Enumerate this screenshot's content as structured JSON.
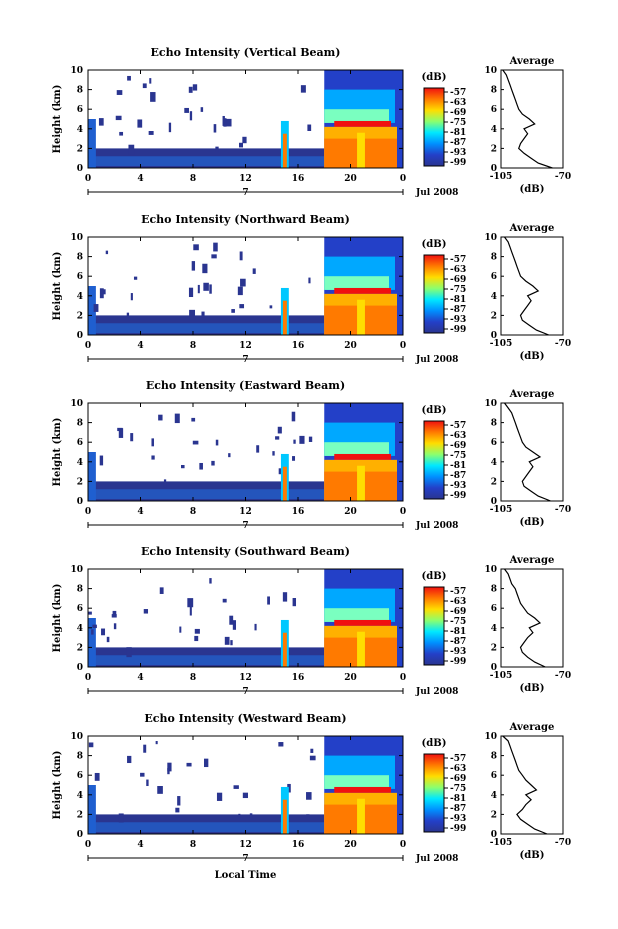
{
  "figure": {
    "xlabel": "Local Time",
    "date_label": "Jul 2008",
    "day_label": "7",
    "colorbar_unit": "(dB)",
    "colorbar_ticks": [
      "-57",
      "-63",
      "-69",
      "-75",
      "-81",
      "-87",
      "-93",
      "-99"
    ],
    "colorbar_stops": [
      "#f01010",
      "#ff7a00",
      "#ffdd00",
      "#8cff6e",
      "#00e8ff",
      "#0090ff",
      "#2340c8",
      "#2a3590"
    ],
    "profile_title": "Average",
    "profile_xlabel": "(dB)"
  },
  "chart_data": [
    {
      "type": "heatmap",
      "title": "Echo Intensity (Vertical Beam)",
      "ylabel": "Height (km)",
      "xticks": [
        "0",
        "4",
        "8",
        "12",
        "16",
        "20",
        "0"
      ],
      "yticks": [
        "0",
        "2",
        "4",
        "6",
        "8",
        "10"
      ],
      "ylim": [
        0,
        10
      ],
      "xlim": [
        0,
        24
      ],
      "colorbar_range": [
        -99,
        -57
      ],
      "profile": {
        "xticks": [
          "-105",
          "-70"
        ],
        "yticks": [
          "0",
          "2",
          "4",
          "6",
          "8",
          "10"
        ],
        "xlim": [
          -105,
          -70
        ],
        "height_km": [
          0,
          0.5,
          1,
          1.5,
          2,
          2.5,
          3,
          3.5,
          4,
          4.5,
          5,
          5.5,
          6,
          6.5,
          7,
          7.5,
          8,
          8.5,
          9,
          9.5,
          10
        ],
        "avg_db": [
          -76,
          -84,
          -88,
          -92,
          -95,
          -94,
          -92,
          -90,
          -92,
          -86,
          -89,
          -93,
          -95,
          -96,
          -97,
          -98,
          -99,
          -100,
          -101,
          -102,
          -104
        ]
      }
    },
    {
      "type": "heatmap",
      "title": "Echo Intensity (Northward Beam)",
      "ylabel": "Height (km)",
      "xticks": [
        "0",
        "4",
        "8",
        "12",
        "16",
        "20",
        "0"
      ],
      "yticks": [
        "0",
        "2",
        "4",
        "6",
        "8",
        "10"
      ],
      "ylim": [
        0,
        10
      ],
      "xlim": [
        0,
        24
      ],
      "colorbar_range": [
        -99,
        -57
      ],
      "profile": {
        "xticks": [
          "-105",
          "-70"
        ],
        "yticks": [
          "0",
          "2",
          "4",
          "6",
          "8",
          "10"
        ],
        "xlim": [
          -105,
          -70
        ],
        "height_km": [
          0,
          0.5,
          1,
          1.5,
          2,
          2.5,
          3,
          3.5,
          4,
          4.5,
          5,
          5.5,
          6,
          6.5,
          7,
          7.5,
          8,
          8.5,
          9,
          9.5,
          10
        ],
        "avg_db": [
          -78,
          -85,
          -89,
          -93,
          -94,
          -92,
          -90,
          -88,
          -90,
          -84,
          -87,
          -91,
          -94,
          -95,
          -96,
          -97,
          -98,
          -99,
          -100,
          -101,
          -103
        ]
      }
    },
    {
      "type": "heatmap",
      "title": "Echo Intensity (Eastward Beam)",
      "ylabel": "Height (km)",
      "xticks": [
        "0",
        "4",
        "8",
        "12",
        "16",
        "20",
        "0"
      ],
      "yticks": [
        "0",
        "2",
        "4",
        "6",
        "8",
        "10"
      ],
      "ylim": [
        0,
        10
      ],
      "xlim": [
        0,
        24
      ],
      "colorbar_range": [
        -99,
        -57
      ],
      "profile": {
        "xticks": [
          "-105",
          "-70"
        ],
        "yticks": [
          "0",
          "2",
          "4",
          "6",
          "8",
          "10"
        ],
        "xlim": [
          -105,
          -70
        ],
        "height_km": [
          0,
          0.5,
          1,
          1.5,
          2,
          2.5,
          3,
          3.5,
          4,
          4.5,
          5,
          5.5,
          6,
          6.5,
          7,
          7.5,
          8,
          8.5,
          9,
          9.5,
          10
        ],
        "avg_db": [
          -77,
          -84,
          -88,
          -92,
          -93,
          -91,
          -89,
          -87,
          -89,
          -83,
          -87,
          -91,
          -93,
          -94,
          -95,
          -96,
          -97,
          -98,
          -99,
          -101,
          -103
        ]
      }
    },
    {
      "type": "heatmap",
      "title": "Echo Intensity (Southward Beam)",
      "ylabel": "Height (km)",
      "xticks": [
        "0",
        "4",
        "8",
        "12",
        "16",
        "20",
        "0"
      ],
      "yticks": [
        "0",
        "2",
        "4",
        "6",
        "8",
        "10"
      ],
      "ylim": [
        0,
        10
      ],
      "xlim": [
        0,
        24
      ],
      "colorbar_range": [
        -99,
        -57
      ],
      "profile": {
        "xticks": [
          "-105",
          "-70"
        ],
        "yticks": [
          "0",
          "2",
          "4",
          "6",
          "8",
          "10"
        ],
        "xlim": [
          -105,
          -70
        ],
        "height_km": [
          0,
          0.5,
          1,
          1.5,
          2,
          2.5,
          3,
          3.5,
          4,
          4.5,
          5,
          5.5,
          6,
          6.5,
          7,
          7.5,
          8,
          8.5,
          9,
          9.5,
          10
        ],
        "avg_db": [
          -80,
          -86,
          -90,
          -93,
          -94,
          -92,
          -90,
          -87,
          -89,
          -83,
          -86,
          -90,
          -92,
          -94,
          -95,
          -96,
          -97,
          -99,
          -100,
          -101,
          -103
        ]
      }
    },
    {
      "type": "heatmap",
      "title": "Echo Intensity (Westward Beam)",
      "ylabel": "Height (km)",
      "xticks": [
        "0",
        "4",
        "8",
        "12",
        "16",
        "20",
        "0"
      ],
      "yticks": [
        "0",
        "2",
        "4",
        "6",
        "8",
        "10"
      ],
      "ylim": [
        0,
        10
      ],
      "xlim": [
        0,
        24
      ],
      "colorbar_range": [
        -99,
        -57
      ],
      "profile": {
        "xticks": [
          "-105",
          "-70"
        ],
        "yticks": [
          "0",
          "2",
          "4",
          "6",
          "8",
          "10"
        ],
        "xlim": [
          -105,
          -70
        ],
        "height_km": [
          0,
          0.5,
          1,
          1.5,
          2,
          2.5,
          3,
          3.5,
          4,
          4.5,
          5,
          5.5,
          6,
          6.5,
          7,
          7.5,
          8,
          8.5,
          9,
          9.5,
          10
        ],
        "avg_db": [
          -79,
          -86,
          -90,
          -94,
          -96,
          -93,
          -91,
          -88,
          -91,
          -85,
          -88,
          -91,
          -93,
          -95,
          -96,
          -97,
          -98,
          -99,
          -100,
          -101,
          -104
        ]
      }
    }
  ]
}
